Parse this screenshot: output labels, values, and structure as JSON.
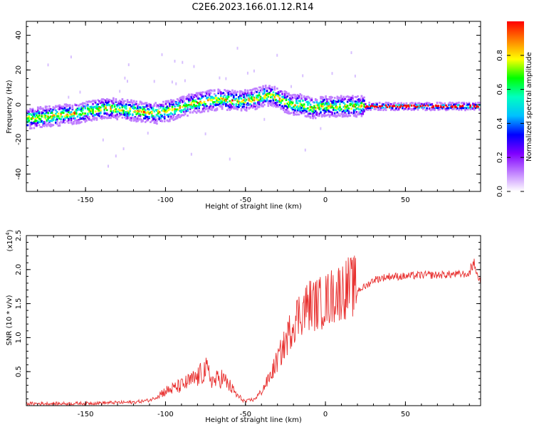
{
  "figure": {
    "title": "C2E6.2023.166.01.12.R14"
  },
  "chart_data": [
    {
      "type": "heatmap",
      "title": "C2E6.2023.166.01.12.R14",
      "xlabel": "Height of straight line (km)",
      "ylabel": "Frequency (Hz)",
      "xlim": [
        -187,
        97
      ],
      "ylim": [
        -50,
        48
      ],
      "xticks": [
        -150,
        -100,
        -50,
        0,
        50
      ],
      "yticks": [
        -40,
        -20,
        0,
        20,
        40
      ],
      "colorbar": {
        "label": "Normalized spectral amplitude",
        "range": [
          0.0,
          1.0
        ],
        "ticks": [
          0.0,
          0.2,
          0.4,
          0.6,
          0.8
        ],
        "colormap": [
          "#ffffff",
          "#c080ff",
          "#8000ff",
          "#0000ff",
          "#00c0ff",
          "#00ffc0",
          "#00ff00",
          "#ffff00",
          "#ff8000",
          "#ff0000"
        ]
      },
      "ridge": {
        "x": [
          -187,
          -175,
          -165,
          -155,
          -145,
          -135,
          -125,
          -115,
          -105,
          -95,
          -85,
          -75,
          -65,
          -55,
          -45,
          -38,
          -33,
          -28,
          -22,
          -15,
          -8,
          0,
          10,
          20,
          30,
          50,
          70,
          90,
          96
        ],
        "y": [
          -8,
          -7,
          -6,
          -5,
          -3,
          -2,
          -3,
          -4,
          -5,
          -3,
          0,
          2,
          3,
          2,
          3,
          5,
          5,
          3,
          0,
          0,
          -2,
          -1,
          -1,
          -1,
          -1,
          -1,
          -1,
          -1,
          -1
        ]
      }
    },
    {
      "type": "line",
      "xlabel": "Height of straight line (km)",
      "ylabel": "SNR (10 * v/v)",
      "yscale_label": "(x10",
      "yscale_exp": "4",
      "yscale_close": ")",
      "xlim": [
        -187,
        97
      ],
      "ylim": [
        0,
        25000
      ],
      "xticks": [
        -150,
        -100,
        -50,
        0,
        50
      ],
      "yticks": [
        5000,
        10000,
        15000,
        20000,
        25000
      ],
      "ytick_labels": [
        "0.5",
        "1.0",
        "1.5",
        "2.0",
        "2.5"
      ],
      "color": "#e8302f",
      "envelope": {
        "x": [
          -187,
          -160,
          -140,
          -120,
          -110,
          -100,
          -90,
          -80,
          -75,
          -70,
          -65,
          -60,
          -55,
          -50,
          -45,
          -40,
          -35,
          -30,
          -25,
          -20,
          -15,
          -10,
          -5,
          0,
          5,
          10,
          15,
          20,
          25,
          30,
          40,
          50,
          60,
          70,
          80,
          85,
          90,
          93,
          95,
          97
        ],
        "y": [
          300,
          300,
          400,
          500,
          800,
          1800,
          2500,
          3500,
          4500,
          3000,
          3500,
          2500,
          1200,
          500,
          800,
          2000,
          4000,
          6500,
          9000,
          12000,
          13500,
          14500,
          14500,
          15000,
          15800,
          16500,
          17000,
          17000,
          17500,
          18500,
          19000,
          19000,
          19200,
          19200,
          19300,
          19300,
          19500,
          21000,
          19000,
          18500
        ]
      }
    }
  ]
}
